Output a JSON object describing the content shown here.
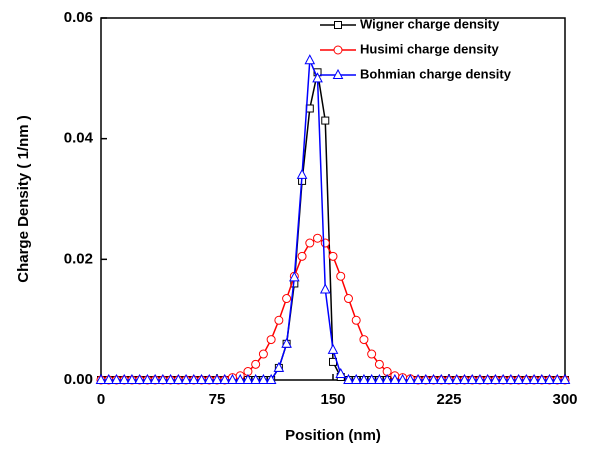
{
  "chart_data": {
    "type": "line",
    "xlabel": "Position (nm)",
    "ylabel": "Charge Density ( 1/nm )",
    "x": [
      0,
      5,
      10,
      15,
      20,
      25,
      30,
      35,
      40,
      45,
      50,
      55,
      60,
      65,
      70,
      75,
      80,
      85,
      90,
      95,
      100,
      105,
      110,
      115,
      120,
      125,
      130,
      135,
      140,
      145,
      150,
      155,
      160,
      165,
      170,
      175,
      180,
      185,
      190,
      195,
      200,
      205,
      210,
      215,
      220,
      225,
      230,
      235,
      240,
      245,
      250,
      255,
      260,
      265,
      270,
      275,
      280,
      285,
      290,
      295,
      300
    ],
    "series": [
      {
        "name": "Wigner charge density",
        "color": "#000000",
        "marker": "square",
        "values": [
          0,
          0,
          0,
          0,
          0,
          0,
          0,
          0,
          0,
          0,
          0,
          0,
          0,
          0,
          0,
          0,
          0,
          0,
          0,
          0,
          0,
          0,
          0,
          0.002,
          0.006,
          0.016,
          0.033,
          0.045,
          0.051,
          0.043,
          0.003,
          0.0005,
          0,
          0,
          0,
          0,
          0,
          0,
          0,
          0,
          0,
          0,
          0,
          0,
          0,
          0,
          0,
          0,
          0,
          0,
          0,
          0,
          0,
          0,
          0,
          0,
          0,
          0,
          0,
          0,
          0
        ]
      },
      {
        "name": "Husimi charge density",
        "color": "#ff0000",
        "marker": "circle",
        "values": [
          0,
          0,
          0,
          0,
          0,
          0,
          0,
          0,
          0,
          0,
          0,
          0,
          0,
          0,
          0,
          0,
          0,
          0.0004,
          0.0007,
          0.0014,
          0.0026,
          0.0043,
          0.0067,
          0.0099,
          0.0135,
          0.0172,
          0.0205,
          0.0227,
          0.0235,
          0.0227,
          0.0205,
          0.0172,
          0.0135,
          0.0099,
          0.0067,
          0.0043,
          0.0026,
          0.0014,
          0.0007,
          0.0004,
          0.0002,
          0,
          0,
          0,
          0,
          0,
          0,
          0,
          0,
          0,
          0,
          0,
          0,
          0,
          0,
          0,
          0,
          0,
          0,
          0,
          0
        ]
      },
      {
        "name": "Bohmian charge density",
        "color": "#0000ff",
        "marker": "triangle",
        "values": [
          0,
          0,
          0,
          0,
          0,
          0,
          0,
          0,
          0,
          0,
          0,
          0,
          0,
          0,
          0,
          0,
          0,
          0,
          0,
          0,
          0,
          0,
          0,
          0.002,
          0.006,
          0.017,
          0.034,
          0.053,
          0.05,
          0.015,
          0.005,
          0.001,
          0,
          0,
          0,
          0,
          0,
          0,
          0,
          0,
          0,
          0,
          0,
          0,
          0,
          0,
          0,
          0,
          0,
          0,
          0,
          0,
          0,
          0,
          0,
          0,
          0,
          0,
          0,
          0,
          0
        ]
      }
    ],
    "xlim": [
      0,
      300
    ],
    "xticks": [
      0,
      75,
      150,
      225,
      300
    ],
    "ylim": [
      0,
      0.06
    ],
    "yticks": [
      {
        "value": 0,
        "label": "0.00"
      },
      0.02,
      0.04,
      0.06
    ],
    "legend": "upper right"
  }
}
